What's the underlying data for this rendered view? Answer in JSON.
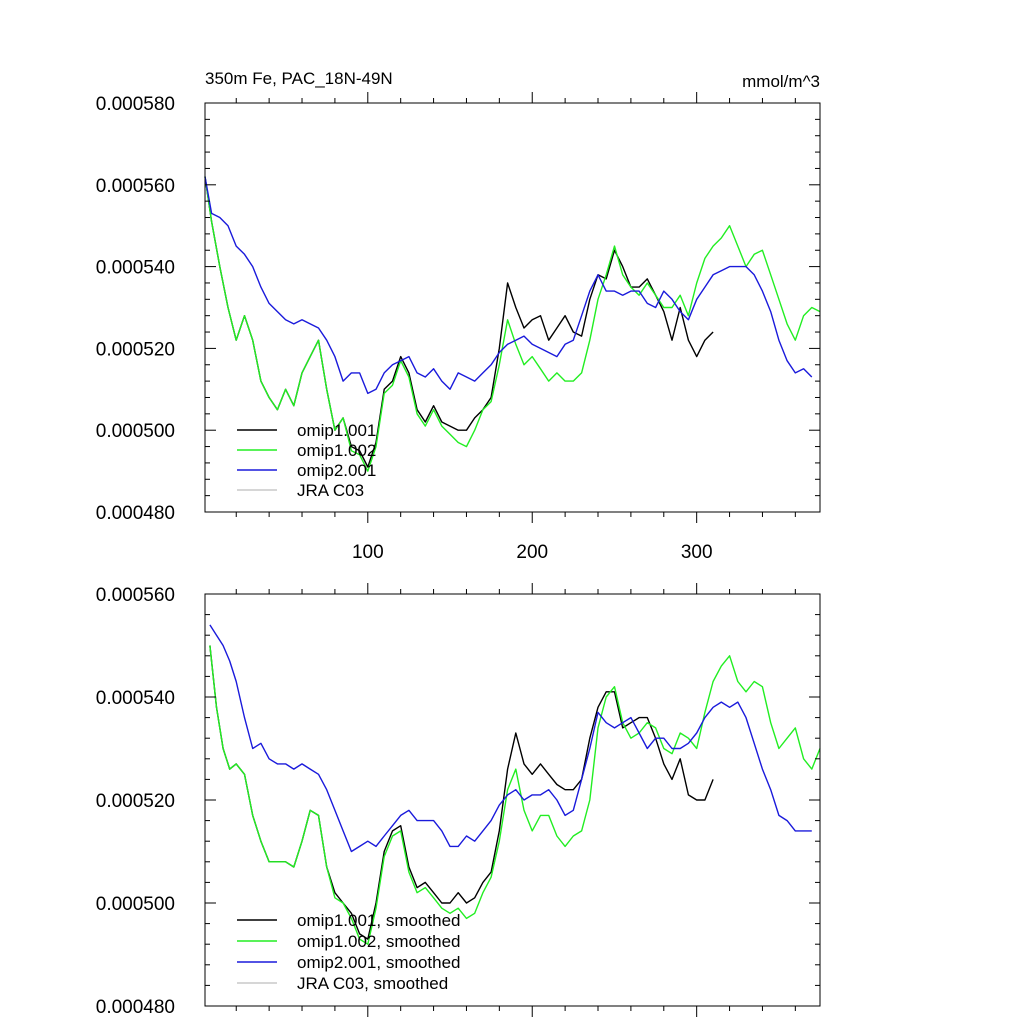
{
  "chart_data": [
    {
      "type": "line",
      "title": "350m Fe, PAC_18N-49N",
      "units": "mmol/m^3",
      "xlim": [
        1,
        375
      ],
      "ylim": [
        0.00048,
        0.00058
      ],
      "xticks": [
        100,
        200,
        300
      ],
      "xtick_labels": [
        "100",
        "200",
        "300"
      ],
      "yticks": [
        0.00048,
        0.0005,
        0.00052,
        0.00054,
        0.00056,
        0.00058
      ],
      "ytick_labels": [
        "0.000480",
        "0.000500",
        "0.000520",
        "0.000540",
        "0.000560",
        "0.000580"
      ],
      "legend_position": "bottom-left",
      "series": [
        {
          "name": "omip1.001",
          "color": "#000000",
          "x": [
            1,
            5,
            10,
            15,
            20,
            25,
            30,
            35,
            40,
            45,
            50,
            55,
            60,
            65,
            70,
            75,
            80,
            85,
            90,
            95,
            100,
            105,
            110,
            115,
            120,
            125,
            130,
            135,
            140,
            145,
            150,
            155,
            160,
            165,
            170,
            175,
            180,
            185,
            190,
            195,
            200,
            205,
            210,
            215,
            220,
            225,
            230,
            235,
            240,
            245,
            250,
            255,
            260,
            265,
            270,
            275,
            280,
            285,
            290,
            295,
            300,
            305,
            310
          ],
          "values": [
            0.000562,
            0.000551,
            0.00054,
            0.00053,
            0.000522,
            0.000528,
            0.000522,
            0.000512,
            0.000508,
            0.000505,
            0.00051,
            0.000506,
            0.000514,
            0.000518,
            0.000522,
            0.00051,
            0.0005,
            0.000503,
            0.000496,
            0.000495,
            0.000491,
            0.000497,
            0.00051,
            0.000512,
            0.000518,
            0.000514,
            0.000505,
            0.000502,
            0.000506,
            0.000502,
            0.000501,
            0.0005,
            0.0005,
            0.000503,
            0.000505,
            0.000508,
            0.00052,
            0.000536,
            0.00053,
            0.000525,
            0.000527,
            0.000528,
            0.000522,
            0.000525,
            0.000528,
            0.000524,
            0.000523,
            0.000532,
            0.000538,
            0.000537,
            0.000544,
            0.00054,
            0.000535,
            0.000535,
            0.000537,
            0.000533,
            0.000529,
            0.000522,
            0.00053,
            0.000522,
            0.000518,
            0.000522,
            0.000524
          ]
        },
        {
          "name": "omip1.002",
          "color": "#22ee22",
          "x": [
            1,
            5,
            10,
            15,
            20,
            25,
            30,
            35,
            40,
            45,
            50,
            55,
            60,
            65,
            70,
            75,
            80,
            85,
            90,
            95,
            100,
            105,
            110,
            115,
            120,
            125,
            130,
            135,
            140,
            145,
            150,
            155,
            160,
            165,
            170,
            175,
            180,
            185,
            190,
            195,
            200,
            205,
            210,
            215,
            220,
            225,
            230,
            235,
            240,
            245,
            250,
            255,
            260,
            265,
            270,
            275,
            280,
            285,
            290,
            295,
            300,
            305,
            310,
            315,
            320,
            325,
            330,
            335,
            340,
            345,
            350,
            355,
            360,
            365,
            370,
            375
          ],
          "values": [
            0.000562,
            0.000551,
            0.00054,
            0.00053,
            0.000522,
            0.000528,
            0.000522,
            0.000512,
            0.000508,
            0.000505,
            0.00051,
            0.000506,
            0.000514,
            0.000518,
            0.000522,
            0.00051,
            0.0005,
            0.000503,
            0.000495,
            0.000494,
            0.00049,
            0.000496,
            0.000509,
            0.000511,
            0.000517,
            0.000513,
            0.000504,
            0.000501,
            0.000505,
            0.000501,
            0.000499,
            0.000497,
            0.000496,
            0.0005,
            0.000505,
            0.000507,
            0.000516,
            0.000527,
            0.000521,
            0.000516,
            0.000518,
            0.000515,
            0.000512,
            0.000514,
            0.000512,
            0.000512,
            0.000514,
            0.000522,
            0.000532,
            0.000538,
            0.000545,
            0.000538,
            0.000535,
            0.000533,
            0.000536,
            0.000533,
            0.00053,
            0.00053,
            0.000533,
            0.000528,
            0.000536,
            0.000542,
            0.000545,
            0.000547,
            0.00055,
            0.000545,
            0.00054,
            0.000543,
            0.000544,
            0.000538,
            0.000532,
            0.000526,
            0.000522,
            0.000528,
            0.00053,
            0.000529
          ]
        },
        {
          "name": "omip2.001",
          "color": "#1a1adb",
          "x": [
            1,
            5,
            10,
            15,
            20,
            25,
            30,
            35,
            40,
            45,
            50,
            55,
            60,
            65,
            70,
            75,
            80,
            85,
            90,
            95,
            100,
            105,
            110,
            115,
            120,
            125,
            130,
            135,
            140,
            145,
            150,
            155,
            160,
            165,
            170,
            175,
            180,
            185,
            190,
            195,
            200,
            205,
            210,
            215,
            220,
            225,
            230,
            235,
            240,
            245,
            250,
            255,
            260,
            265,
            270,
            275,
            280,
            285,
            290,
            295,
            300,
            305,
            310,
            315,
            320,
            325,
            330,
            335,
            340,
            345,
            350,
            355,
            360,
            365,
            370
          ],
          "values": [
            0.000562,
            0.000553,
            0.000552,
            0.00055,
            0.000545,
            0.000543,
            0.00054,
            0.000535,
            0.000531,
            0.000529,
            0.000527,
            0.000526,
            0.000527,
            0.000526,
            0.000525,
            0.000522,
            0.000518,
            0.000512,
            0.000514,
            0.000514,
            0.000509,
            0.00051,
            0.000514,
            0.000516,
            0.000517,
            0.000518,
            0.000514,
            0.000513,
            0.000515,
            0.000512,
            0.00051,
            0.000514,
            0.000513,
            0.000512,
            0.000514,
            0.000516,
            0.000519,
            0.000521,
            0.000522,
            0.000523,
            0.000521,
            0.00052,
            0.000519,
            0.000518,
            0.000521,
            0.000522,
            0.000528,
            0.000534,
            0.000538,
            0.000534,
            0.000534,
            0.000533,
            0.000534,
            0.000534,
            0.000531,
            0.00053,
            0.000534,
            0.000532,
            0.000529,
            0.000527,
            0.000532,
            0.000535,
            0.000538,
            0.000539,
            0.00054,
            0.00054,
            0.00054,
            0.000538,
            0.000534,
            0.000529,
            0.000522,
            0.000517,
            0.000514,
            0.000515,
            0.000513
          ]
        },
        {
          "name": "JRA C03",
          "color": "#c8c8c8",
          "x": [],
          "values": []
        }
      ]
    },
    {
      "type": "line",
      "title": "",
      "xlim": [
        1,
        375
      ],
      "ylim": [
        0.00048,
        0.00056
      ],
      "xticks": [
        100,
        200,
        300
      ],
      "xtick_labels": [],
      "yticks": [
        0.00048,
        0.0005,
        0.00052,
        0.00054,
        0.00056
      ],
      "ytick_labels": [
        "0.000480",
        "0.000500",
        "0.000520",
        "0.000540",
        "0.000560"
      ],
      "legend_position": "bottom-left",
      "series": [
        {
          "name": "omip1.001, smoothed",
          "color": "#000000",
          "x": [
            4,
            8,
            12,
            16,
            20,
            25,
            30,
            35,
            40,
            45,
            50,
            55,
            60,
            65,
            70,
            75,
            80,
            85,
            90,
            95,
            100,
            105,
            110,
            115,
            120,
            125,
            130,
            135,
            140,
            145,
            150,
            155,
            160,
            165,
            170,
            175,
            180,
            185,
            190,
            195,
            200,
            205,
            210,
            215,
            220,
            225,
            230,
            235,
            240,
            245,
            250,
            255,
            260,
            265,
            270,
            275,
            280,
            285,
            290,
            295,
            300,
            305,
            310
          ],
          "values": [
            0.00055,
            0.000538,
            0.00053,
            0.000526,
            0.000527,
            0.000525,
            0.000517,
            0.000512,
            0.000508,
            0.000508,
            0.000508,
            0.000507,
            0.000512,
            0.000518,
            0.000517,
            0.000507,
            0.000502,
            0.0005,
            0.000498,
            0.000494,
            0.000493,
            0.0005,
            0.00051,
            0.000514,
            0.000515,
            0.000507,
            0.000503,
            0.000504,
            0.000502,
            0.0005,
            0.0005,
            0.000502,
            0.0005,
            0.000501,
            0.000504,
            0.000506,
            0.000514,
            0.000526,
            0.000533,
            0.000527,
            0.000525,
            0.000527,
            0.000525,
            0.000523,
            0.000522,
            0.000522,
            0.000524,
            0.000532,
            0.000538,
            0.000541,
            0.000541,
            0.000534,
            0.000535,
            0.000536,
            0.000536,
            0.000532,
            0.000527,
            0.000524,
            0.000528,
            0.000521,
            0.00052,
            0.00052,
            0.000524
          ]
        },
        {
          "name": "omip1.002, smoothed",
          "color": "#22ee22",
          "x": [
            4,
            8,
            12,
            16,
            20,
            25,
            30,
            35,
            40,
            45,
            50,
            55,
            60,
            65,
            70,
            75,
            80,
            85,
            90,
            95,
            100,
            105,
            110,
            115,
            120,
            125,
            130,
            135,
            140,
            145,
            150,
            155,
            160,
            165,
            170,
            175,
            180,
            185,
            190,
            195,
            200,
            205,
            210,
            215,
            220,
            225,
            230,
            235,
            240,
            245,
            250,
            255,
            260,
            265,
            270,
            275,
            280,
            285,
            290,
            295,
            300,
            305,
            310,
            315,
            320,
            325,
            330,
            335,
            340,
            345,
            350,
            355,
            360,
            365,
            370,
            375
          ],
          "values": [
            0.00055,
            0.000538,
            0.00053,
            0.000526,
            0.000527,
            0.000525,
            0.000517,
            0.000512,
            0.000508,
            0.000508,
            0.000508,
            0.000507,
            0.000512,
            0.000518,
            0.000517,
            0.000507,
            0.000501,
            0.0005,
            0.000497,
            0.000493,
            0.000492,
            0.000499,
            0.000509,
            0.000513,
            0.000514,
            0.000506,
            0.000502,
            0.000503,
            0.000501,
            0.000499,
            0.000498,
            0.000499,
            0.000497,
            0.000498,
            0.000502,
            0.000505,
            0.000512,
            0.000522,
            0.000526,
            0.000518,
            0.000514,
            0.000517,
            0.000517,
            0.000513,
            0.000511,
            0.000513,
            0.000514,
            0.00052,
            0.000534,
            0.00054,
            0.000542,
            0.000535,
            0.000532,
            0.000533,
            0.000535,
            0.000534,
            0.00053,
            0.000529,
            0.000533,
            0.000532,
            0.00053,
            0.000537,
            0.000543,
            0.000546,
            0.000548,
            0.000543,
            0.000541,
            0.000543,
            0.000542,
            0.000535,
            0.00053,
            0.000532,
            0.000534,
            0.000528,
            0.000526,
            0.00053
          ]
        },
        {
          "name": "omip2.001, smoothed",
          "color": "#1a1adb",
          "x": [
            4,
            8,
            12,
            16,
            20,
            25,
            30,
            35,
            40,
            45,
            50,
            55,
            60,
            65,
            70,
            75,
            80,
            85,
            90,
            95,
            100,
            105,
            110,
            115,
            120,
            125,
            130,
            135,
            140,
            145,
            150,
            155,
            160,
            165,
            170,
            175,
            180,
            185,
            190,
            195,
            200,
            205,
            210,
            215,
            220,
            225,
            230,
            235,
            240,
            245,
            250,
            255,
            260,
            265,
            270,
            275,
            280,
            285,
            290,
            295,
            300,
            305,
            310,
            315,
            320,
            325,
            330,
            335,
            340,
            345,
            350,
            355,
            360,
            365,
            370
          ],
          "values": [
            0.000554,
            0.000552,
            0.00055,
            0.000547,
            0.000543,
            0.000536,
            0.00053,
            0.000531,
            0.000528,
            0.000527,
            0.000527,
            0.000526,
            0.000527,
            0.000526,
            0.000525,
            0.000522,
            0.000518,
            0.000514,
            0.00051,
            0.000511,
            0.000512,
            0.000511,
            0.000513,
            0.000515,
            0.000517,
            0.000518,
            0.000516,
            0.000516,
            0.000516,
            0.000514,
            0.000511,
            0.000511,
            0.000513,
            0.000512,
            0.000514,
            0.000516,
            0.000519,
            0.000521,
            0.000522,
            0.00052,
            0.000521,
            0.000521,
            0.000522,
            0.00052,
            0.000517,
            0.000518,
            0.000524,
            0.00053,
            0.000537,
            0.000535,
            0.000534,
            0.000535,
            0.000536,
            0.000533,
            0.00053,
            0.000532,
            0.000532,
            0.00053,
            0.00053,
            0.000531,
            0.000533,
            0.000536,
            0.000538,
            0.000539,
            0.000538,
            0.000539,
            0.000536,
            0.000531,
            0.000526,
            0.000522,
            0.000517,
            0.000516,
            0.000514,
            0.000514,
            0.000514
          ]
        },
        {
          "name": "JRA C03, smoothed",
          "color": "#c8c8c8",
          "x": [],
          "values": []
        }
      ]
    }
  ]
}
